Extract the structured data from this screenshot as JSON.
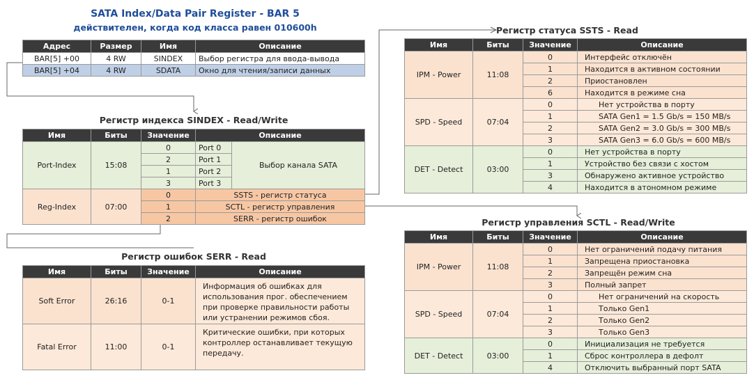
{
  "header": {
    "title": "SATA Index/Data Pair Register - BAR 5",
    "subtitle": "действителен, когда код класса равен 010600h"
  },
  "bar_table": {
    "headers": [
      "Адрес",
      "Размер",
      "Имя",
      "Описание"
    ],
    "rows": [
      [
        "BAR[5] +00",
        "4 RW",
        "SINDEX",
        "Выбор регистра для ввода-вывода"
      ],
      [
        "BAR[5] +04",
        "4 RW",
        "SDATA",
        "Окно для чтения/записи данных"
      ]
    ]
  },
  "sindex": {
    "title": "Регистр индекса SINDEX - Read/Write",
    "headers": [
      "Имя",
      "Биты",
      "Значение",
      "Описание"
    ],
    "port_index": {
      "name": "Port-Index",
      "bits": "15:08",
      "desc": "Выбор канала SATA",
      "values": [
        [
          "0",
          "Port 0"
        ],
        [
          "2",
          "Port 1"
        ],
        [
          "1",
          "Port 2"
        ],
        [
          "3",
          "Port 3"
        ]
      ]
    },
    "reg_index": {
      "name": "Reg-Index",
      "bits": "07:00",
      "values": [
        [
          "0",
          "SSTS - регистр статуса"
        ],
        [
          "1",
          "SCTL - регистр управления"
        ],
        [
          "2",
          "SERR - регистр ошибок"
        ]
      ]
    }
  },
  "serr": {
    "title": "Регистр ошибок SERR - Read",
    "headers": [
      "Имя",
      "Биты",
      "Значение",
      "Описание"
    ],
    "rows": [
      {
        "name": "Soft Error",
        "bits": "26:16",
        "value": "0-1",
        "desc": "Информация об ошибках для использования прог. обеспечением при проверке правильности работы или устранении режимов сбоя."
      },
      {
        "name": "Fatal Error",
        "bits": "11:00",
        "value": "0-1",
        "desc": "Критические ошибки, при которых контроллер останавливает текущую передачу."
      }
    ]
  },
  "ssts": {
    "title": "Регистр статуса SSTS - Read",
    "headers": [
      "Имя",
      "Биты",
      "Значение",
      "Описание"
    ],
    "groups": [
      {
        "name": "IPM - Power",
        "bits": "11:08",
        "rows": [
          [
            "0",
            "Интерфейс отключён"
          ],
          [
            "1",
            "Находится в активном состоянии"
          ],
          [
            "2",
            "Приостановлен"
          ],
          [
            "6",
            "Находится в режиме сна"
          ]
        ]
      },
      {
        "name": "SPD - Speed",
        "bits": "07:04",
        "rows": [
          [
            "0",
            "Нет устройства в порту"
          ],
          [
            "1",
            "SATA Gen1 = 1.5 Gb/s = 150 MB/s"
          ],
          [
            "2",
            "SATA Gen2 = 3.0 Gb/s = 300 MB/s"
          ],
          [
            "3",
            "SATA Gen3 = 6.0 Gb/s = 600 MB/s"
          ]
        ]
      },
      {
        "name": "DET - Detect",
        "bits": "03:00",
        "rows": [
          [
            "0",
            "Нет устройства в порту"
          ],
          [
            "1",
            "Устройство без связи с хостом"
          ],
          [
            "3",
            "Обнаружено активное устройство"
          ],
          [
            "4",
            "Находится в атономном режиме"
          ]
        ]
      }
    ]
  },
  "sctl": {
    "title": "Регистр управления SCTL - Read/Write",
    "headers": [
      "Имя",
      "Биты",
      "Значение",
      "Описание"
    ],
    "groups": [
      {
        "name": "IPM - Power",
        "bits": "11:08",
        "rows": [
          [
            "0",
            "Нет ограничений подачу питания"
          ],
          [
            "1",
            "Запрещена приостановка"
          ],
          [
            "2",
            "Запрещён режим сна"
          ],
          [
            "3",
            "Полный запрет"
          ]
        ]
      },
      {
        "name": "SPD - Speed",
        "bits": "07:04",
        "rows": [
          [
            "0",
            "Нет ограничений на скорость"
          ],
          [
            "1",
            "Только Gen1"
          ],
          [
            "2",
            "Только Gen2"
          ],
          [
            "3",
            "Только Gen3"
          ]
        ]
      },
      {
        "name": "DET - Detect",
        "bits": "03:00",
        "rows": [
          [
            "0",
            "Инициализация не требуется"
          ],
          [
            "1",
            "Сброс контроллера в дефолт"
          ],
          [
            "4",
            "Отключить выбранный порт SATA"
          ]
        ]
      }
    ]
  }
}
